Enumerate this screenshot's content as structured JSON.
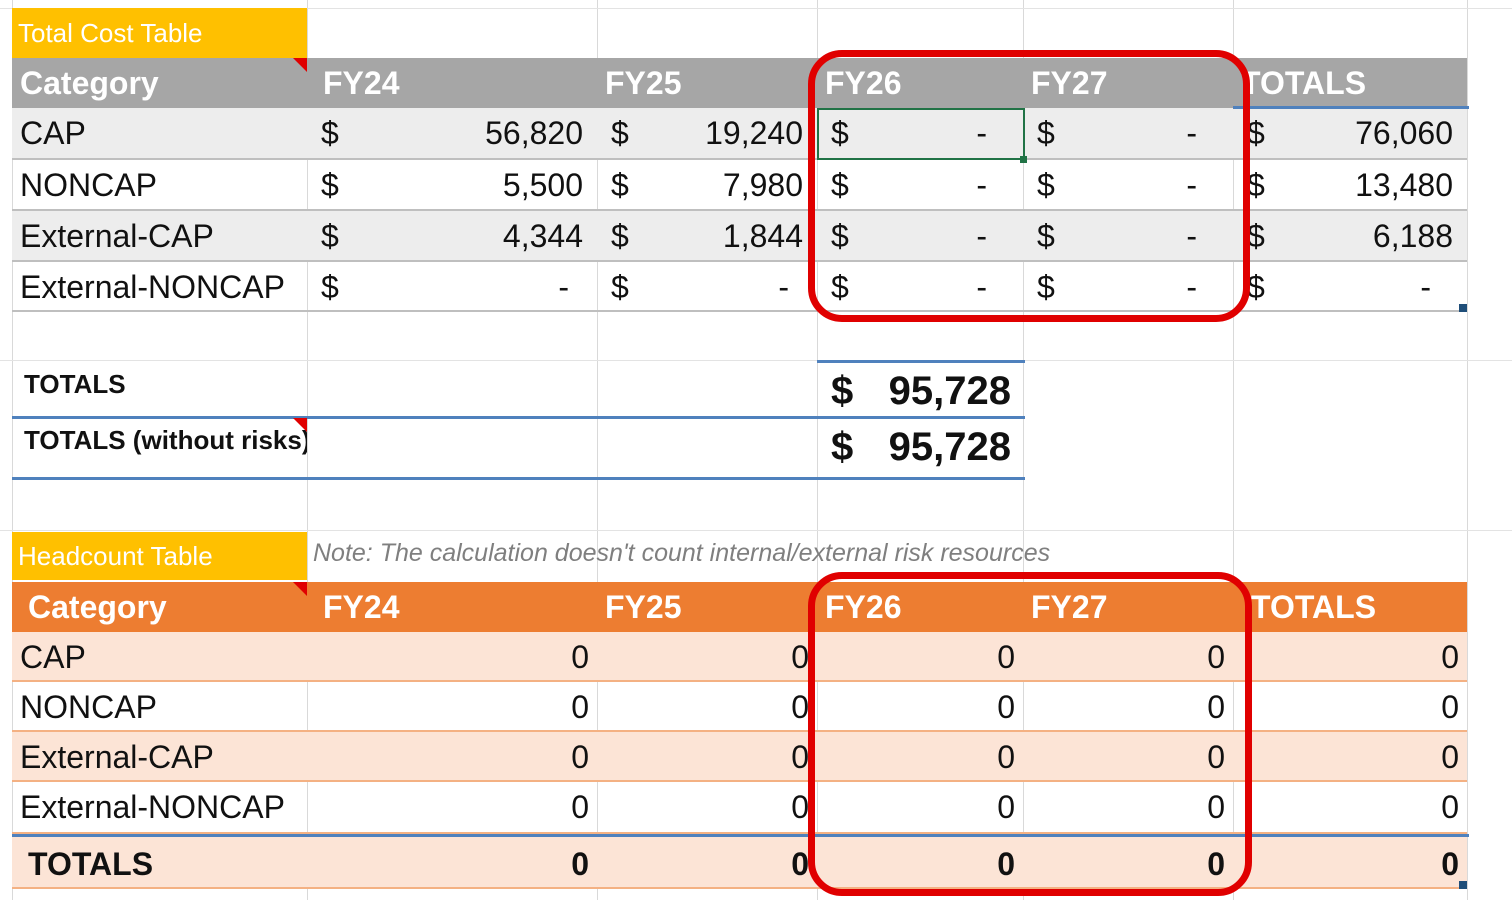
{
  "cost_table": {
    "title": "Total Cost Table",
    "headers": [
      "Category",
      "FY24",
      "FY25",
      "FY26",
      "FY27",
      "TOTALS"
    ],
    "rows": [
      {
        "category": "CAP",
        "cells": [
          [
            "$",
            "56,820"
          ],
          [
            "$",
            "19,240"
          ],
          [
            "$",
            "-"
          ],
          [
            "$",
            "-"
          ],
          [
            "$",
            "76,060"
          ]
        ]
      },
      {
        "category": "NONCAP",
        "cells": [
          [
            "$",
            "5,500"
          ],
          [
            "$",
            "7,980"
          ],
          [
            "$",
            "-"
          ],
          [
            "$",
            "-"
          ],
          [
            "$",
            "13,480"
          ]
        ]
      },
      {
        "category": "External-CAP",
        "cells": [
          [
            "$",
            "4,344"
          ],
          [
            "$",
            "1,844"
          ],
          [
            "$",
            "-"
          ],
          [
            "$",
            "-"
          ],
          [
            "$",
            "6,188"
          ]
        ]
      },
      {
        "category": "External-NONCAP",
        "cells": [
          [
            "$",
            "-"
          ],
          [
            "$",
            "-"
          ],
          [
            "$",
            "-"
          ],
          [
            "$",
            "-"
          ],
          [
            "$",
            "-"
          ]
        ]
      }
    ]
  },
  "totals": [
    {
      "label": "TOTALS",
      "currency": "$",
      "value": "95,728"
    },
    {
      "label": "TOTALS (without risks)",
      "currency": "$",
      "value": "95,728"
    }
  ],
  "headcount_table": {
    "title": "Headcount Table",
    "note": "Note: The calculation doesn't count internal/external risk resources",
    "headers": [
      "Category",
      "FY24",
      "FY25",
      "FY26",
      "FY27",
      "TOTALS"
    ],
    "rows": [
      {
        "category": "CAP",
        "values": [
          "0",
          "0",
          "0",
          "0",
          "0"
        ]
      },
      {
        "category": "NONCAP",
        "values": [
          "0",
          "0",
          "0",
          "0",
          "0"
        ]
      },
      {
        "category": "External-CAP",
        "values": [
          "0",
          "0",
          "0",
          "0",
          "0"
        ]
      },
      {
        "category": "External-NONCAP",
        "values": [
          "0",
          "0",
          "0",
          "0",
          "0"
        ]
      },
      {
        "category": "TOTALS",
        "values": [
          "0",
          "0",
          "0",
          "0",
          "0"
        ]
      }
    ]
  },
  "colors": {
    "title_tag": "#ffc000",
    "cost_header": "#a6a6a6",
    "headcount_header": "#ed7d31",
    "headcount_band": "#fce4d6",
    "highlight_box": "#e00000"
  }
}
